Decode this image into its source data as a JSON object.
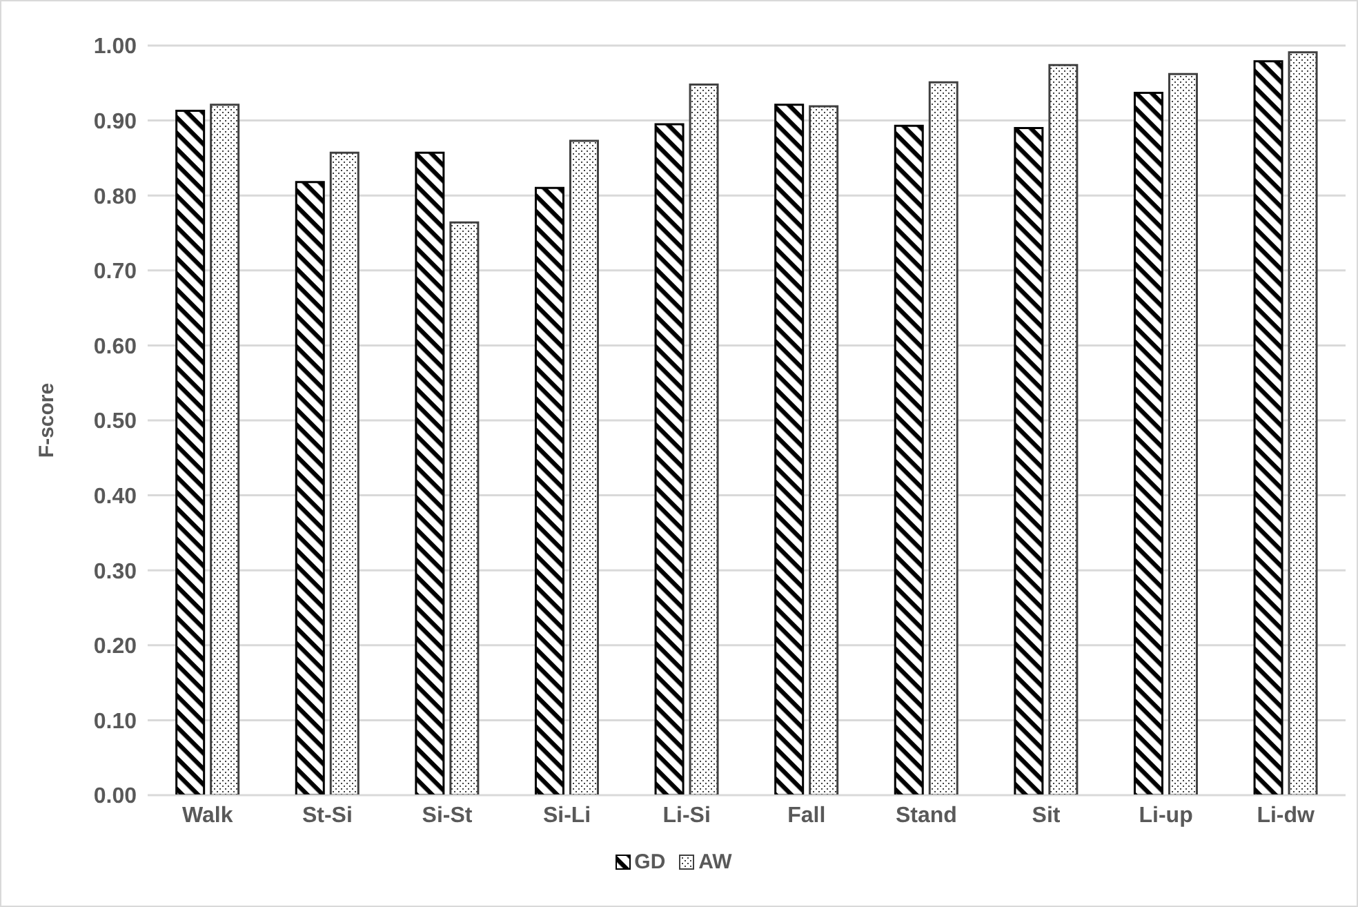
{
  "chart_data": {
    "type": "bar",
    "ylabel": "F-score",
    "categories": [
      "Walk",
      "St-Si",
      "Si-St",
      "Si-Li",
      "Li-Si",
      "Fall",
      "Stand",
      "Sit",
      "Li-up",
      "Li-dw"
    ],
    "series": [
      {
        "name": "GD",
        "color": "#000000",
        "values": [
          0.913,
          0.818,
          0.857,
          0.81,
          0.895,
          0.921,
          0.893,
          0.89,
          0.937,
          0.979
        ]
      },
      {
        "name": "AW",
        "color": "#404040",
        "values": [
          0.921,
          0.857,
          0.764,
          0.873,
          0.948,
          0.919,
          0.951,
          0.974,
          0.962,
          0.991
        ]
      }
    ],
    "ylim": [
      0,
      1
    ],
    "yticks": [
      {
        "value": 0,
        "label": "0.00"
      },
      {
        "value": 0.1,
        "label": "0.10"
      },
      {
        "value": 0.2,
        "label": "0.20"
      },
      {
        "value": 0.3,
        "label": "0.30"
      },
      {
        "value": 0.4,
        "label": "0.40"
      },
      {
        "value": 0.5,
        "label": "0.50"
      },
      {
        "value": 0.6,
        "label": "0.60"
      },
      {
        "value": 0.7,
        "label": "0.70"
      },
      {
        "value": 0.8,
        "label": "0.80"
      },
      {
        "value": 0.9,
        "label": "0.90"
      },
      {
        "value": 1,
        "label": "1.00"
      }
    ],
    "grid": "y",
    "legend": "bottom"
  }
}
